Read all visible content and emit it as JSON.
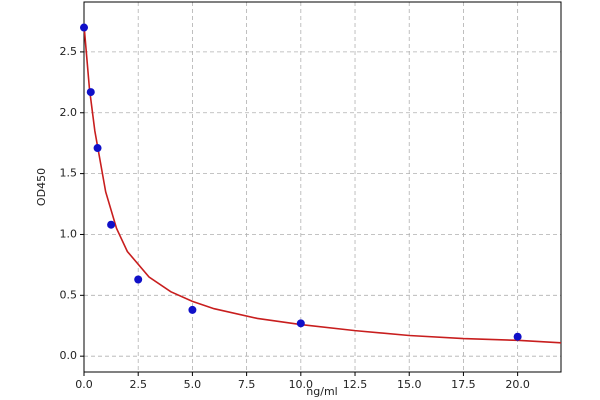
{
  "chart_data": {
    "type": "scatter",
    "xlabel": "ng/ml",
    "ylabel": "OD450",
    "xlim": [
      0,
      22
    ],
    "ylim": [
      -0.13,
      2.91
    ],
    "xticks": [
      {
        "value": 0,
        "label": "0.0"
      },
      2.5,
      {
        "value": 5,
        "label": "5.0"
      },
      7.5,
      {
        "value": 10,
        "label": "10.0"
      },
      12.5,
      {
        "value": 15,
        "label": "15.0"
      },
      17.5,
      {
        "value": 20,
        "label": "20.0"
      }
    ],
    "yticks": [
      {
        "value": 0,
        "label": "0.0"
      },
      0.5,
      {
        "value": 1,
        "label": "1.0"
      },
      1.5,
      {
        "value": 2,
        "label": "2.0"
      },
      2.5
    ],
    "grid": true,
    "series": [
      {
        "style": "points",
        "color": "#1010c8",
        "x": [
          0,
          0.3125,
          0.625,
          1.25,
          2.5,
          5,
          10,
          20
        ],
        "values": [
          2.7,
          2.17,
          1.71,
          1.08,
          0.63,
          0.38,
          0.27,
          0.16
        ]
      },
      {
        "style": "line",
        "color": "#c81e1e",
        "x": [
          0,
          0.25,
          0.5,
          1,
          1.5,
          2,
          3,
          4,
          5,
          6,
          8,
          10,
          12.5,
          15,
          17.5,
          20,
          22
        ],
        "values": [
          2.72,
          2.2,
          1.85,
          1.35,
          1.05,
          0.86,
          0.65,
          0.53,
          0.45,
          0.39,
          0.31,
          0.26,
          0.21,
          0.17,
          0.145,
          0.13,
          0.11
        ]
      }
    ]
  }
}
